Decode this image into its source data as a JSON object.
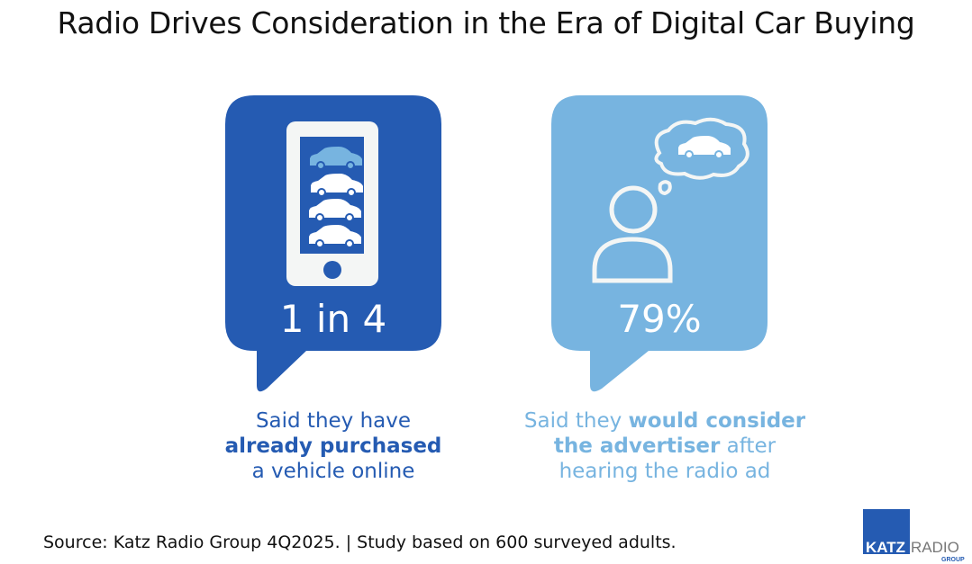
{
  "title": "Radio Drives Consideration in the Era of Digital Car Buying",
  "colors": {
    "dark_blue": "#255bb2",
    "light_blue": "#77b4e0",
    "logo_gray": "#777777"
  },
  "left_card": {
    "icon": "smartphone-with-cars-icon",
    "stat": "1 in 4",
    "caption_pre": "Said they have",
    "caption_bold": "already purchased",
    "caption_post": "a vehicle online"
  },
  "right_card": {
    "icon": "person-thinking-of-car-icon",
    "stat": "79%",
    "caption_pre": "Said they ",
    "caption_bold1": "would consider",
    "caption_bold2": "the advertiser",
    "caption_mid": " after",
    "caption_post": "hearing the radio ad"
  },
  "source": "Source: Katz Radio Group 4Q2025. | Study based on 600 surveyed adults.",
  "logo": {
    "word1": "KATZ",
    "word2": "RADIO",
    "word3": "GROUP"
  }
}
